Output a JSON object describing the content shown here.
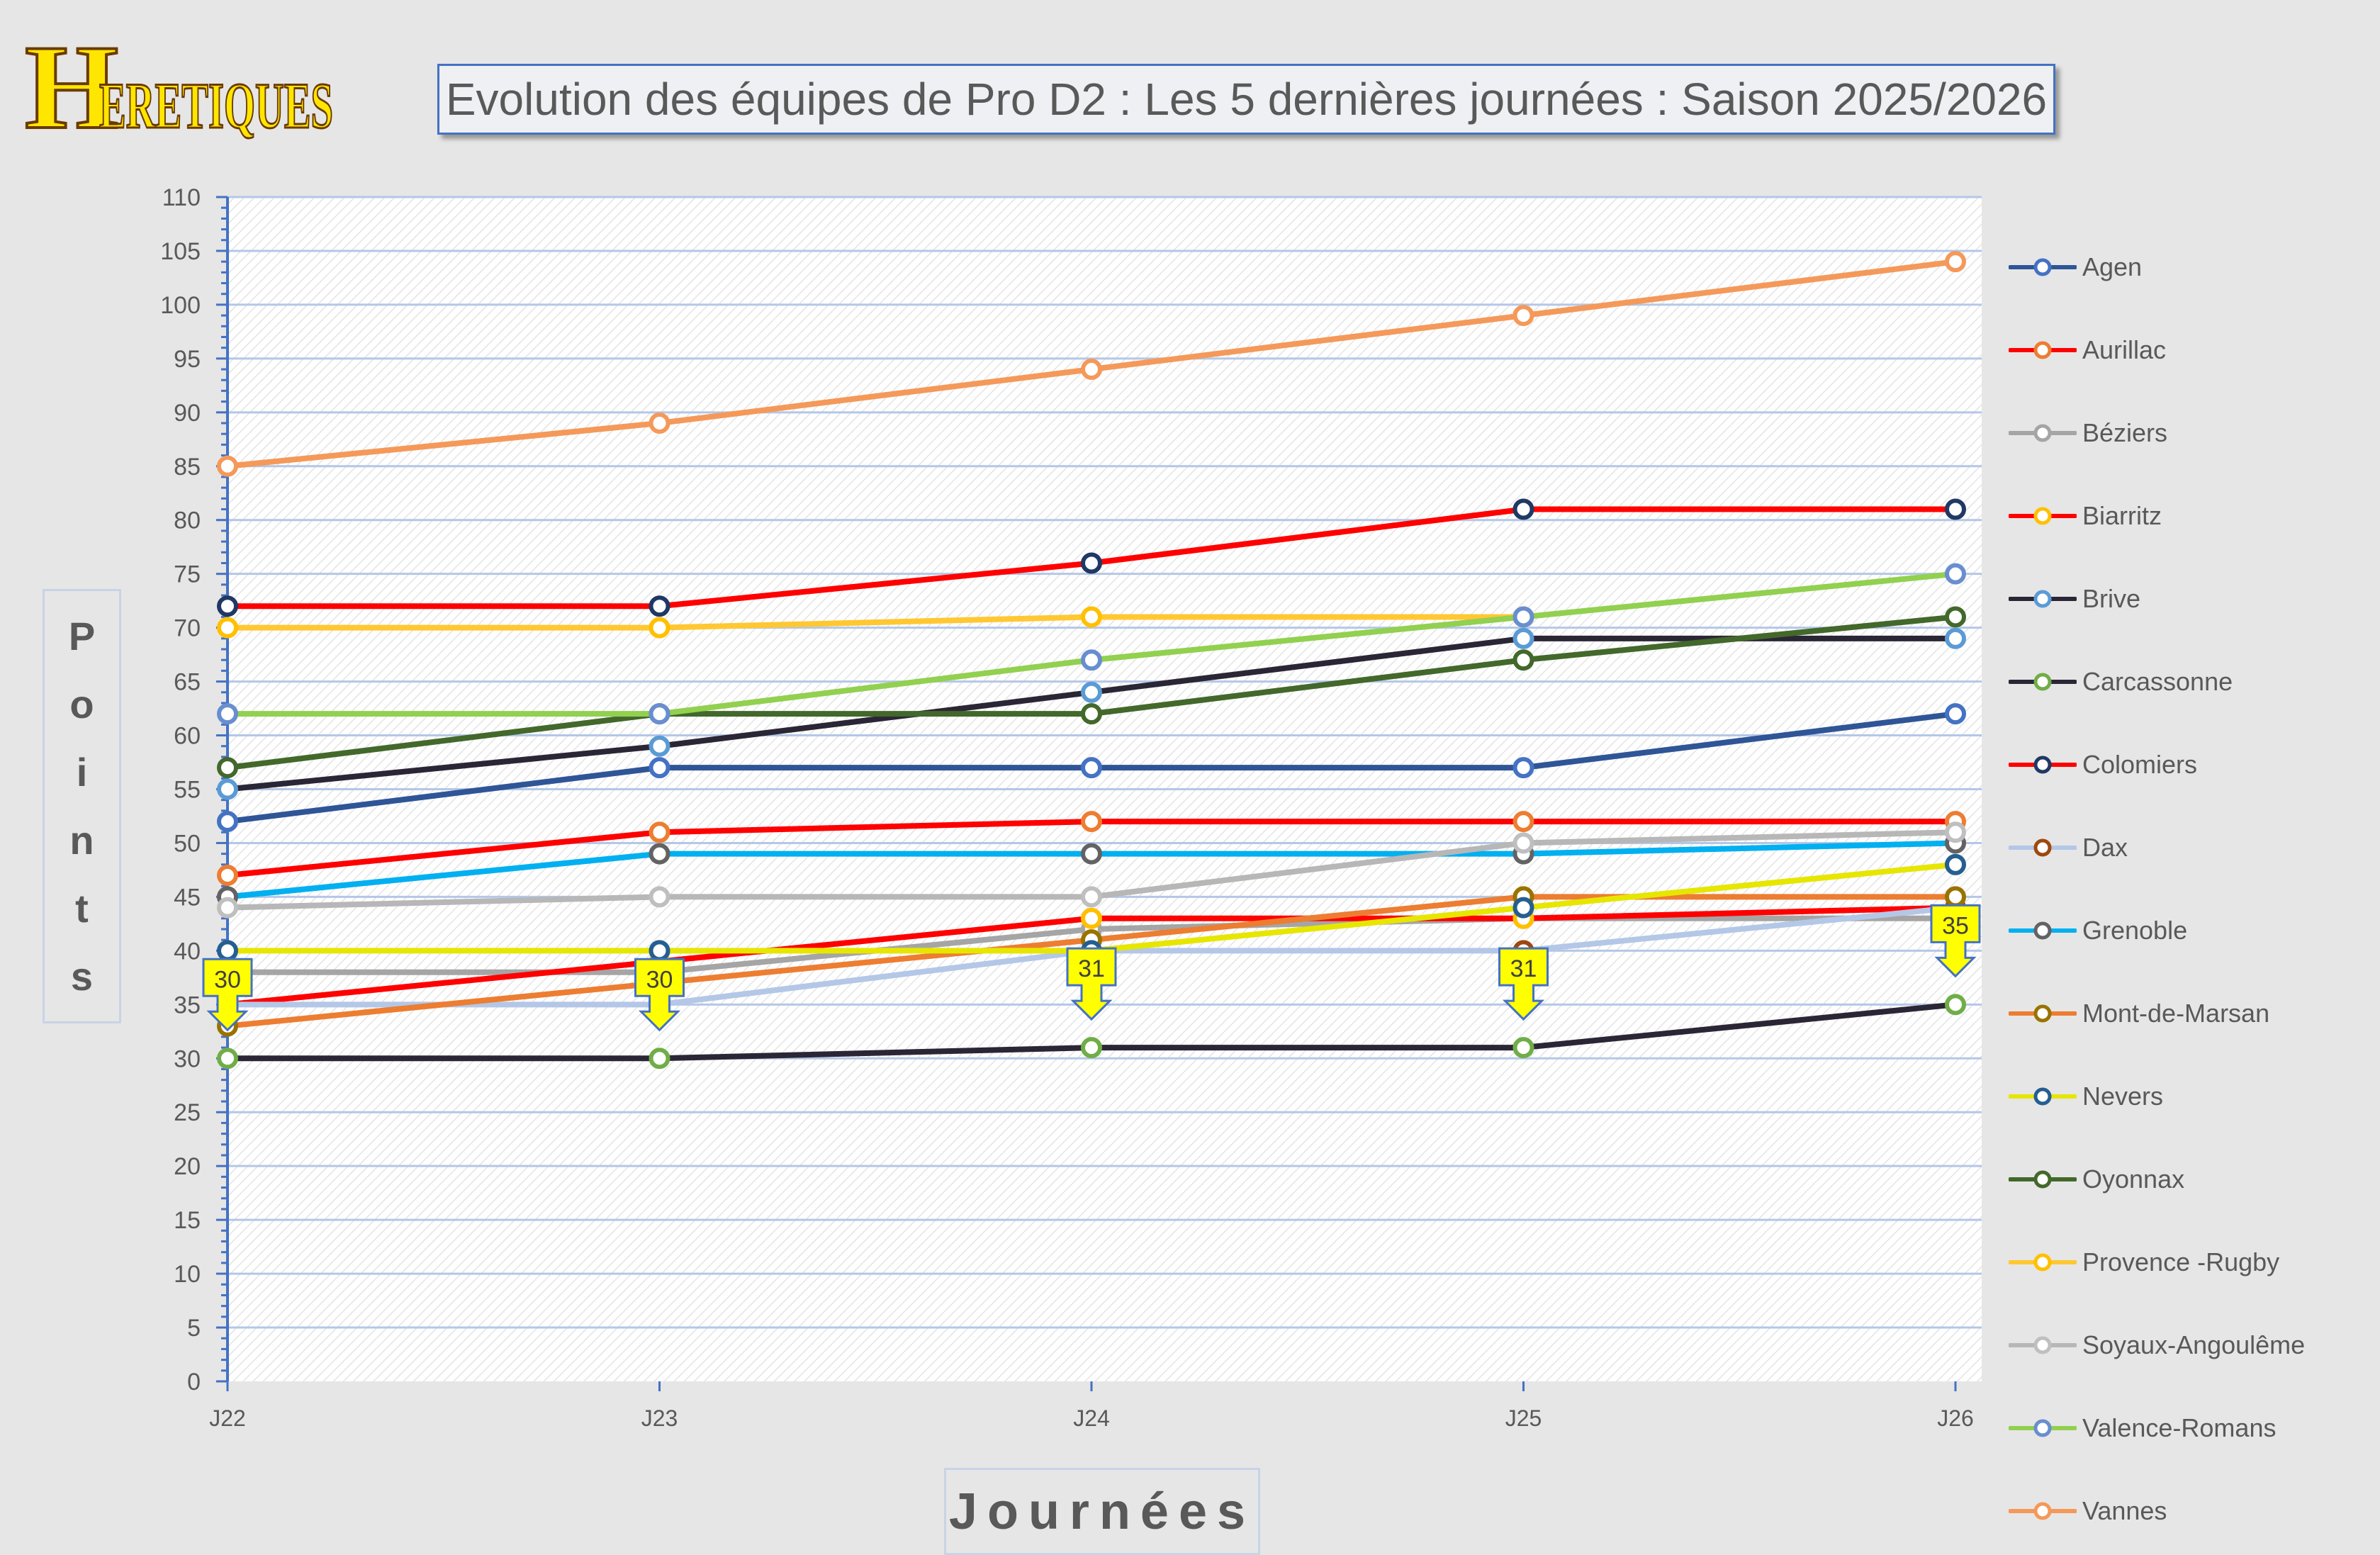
{
  "logo_text": "Heretiques",
  "chart_data": {
    "type": "line",
    "title": "Evolution des équipes de Pro D2 : Les 5 dernières journées : Saison 2025/2026",
    "xlabel": "Journées",
    "ylabel": "Points",
    "categories": [
      "J22",
      "J23",
      "J24",
      "J25",
      "J26"
    ],
    "ylim": [
      0,
      110
    ],
    "yticks": [
      0,
      5,
      10,
      15,
      20,
      25,
      30,
      35,
      40,
      45,
      50,
      55,
      60,
      65,
      70,
      75,
      80,
      85,
      90,
      95,
      100,
      105,
      110
    ],
    "grid": true,
    "legend_position": "right",
    "series": [
      {
        "name": "Agen",
        "line": "#2f5597",
        "marker": "#4472c4",
        "values": [
          52,
          57,
          57,
          57,
          62
        ]
      },
      {
        "name": "Aurillac",
        "line": "#ff0000",
        "marker": "#ed7d31",
        "values": [
          47,
          51,
          52,
          52,
          52
        ]
      },
      {
        "name": "Béziers",
        "line": "#a5a5a5",
        "marker": "#a5a5a5",
        "values": [
          38,
          38,
          42,
          43,
          43
        ]
      },
      {
        "name": "Biarritz",
        "line": "#ff0000",
        "marker": "#ffc000",
        "values": [
          35,
          39,
          43,
          43,
          44
        ]
      },
      {
        "name": "Brive",
        "line": "#2b2635",
        "marker": "#5b9bd5",
        "values": [
          55,
          59,
          64,
          69,
          69
        ]
      },
      {
        "name": "Carcassonne",
        "line": "#2b2635",
        "marker": "#70ad47",
        "values": [
          30,
          30,
          31,
          31,
          35
        ]
      },
      {
        "name": "Colomiers",
        "line": "#ff0000",
        "marker": "#203864",
        "values": [
          72,
          72,
          76,
          81,
          81
        ]
      },
      {
        "name": "Dax",
        "line": "#b4c7e7",
        "marker": "#9e480e",
        "values": [
          35,
          35,
          40,
          40,
          44
        ]
      },
      {
        "name": "Grenoble",
        "line": "#00b0f0",
        "marker": "#636363",
        "values": [
          45,
          49,
          49,
          49,
          50
        ]
      },
      {
        "name": "Mont-de-Marsan",
        "line": "#ed7d31",
        "marker": "#997300",
        "values": [
          33,
          37,
          41,
          45,
          45
        ]
      },
      {
        "name": "Nevers",
        "line": "#e6e600",
        "marker": "#255e91",
        "values": [
          40,
          40,
          40,
          44,
          48
        ]
      },
      {
        "name": "Oyonnax",
        "line": "#43682b",
        "marker": "#43682b",
        "values": [
          57,
          62,
          62,
          67,
          71
        ]
      },
      {
        "name": "Provence -Rugby",
        "line": "#ffc832",
        "marker": "#ffc000",
        "values": [
          70,
          70,
          71,
          71,
          null
        ]
      },
      {
        "name": "Soyaux-Angoulême",
        "line": "#b7b7b7",
        "marker": "#bfbfbf",
        "values": [
          44,
          45,
          45,
          50,
          51
        ]
      },
      {
        "name": "Valence-Romans",
        "line": "#92d050",
        "marker": "#698ed0",
        "values": [
          62,
          62,
          67,
          71,
          75
        ]
      },
      {
        "name": "Vannes",
        "line": "#f4995a",
        "marker": "#f4995a",
        "values": [
          85,
          89,
          94,
          99,
          104
        ]
      }
    ],
    "annotations": {
      "series": "Carcassonne",
      "labels": [
        "30",
        "30",
        "31",
        "31",
        "35"
      ],
      "color": "#ffff00",
      "border": "#4472c4"
    }
  }
}
